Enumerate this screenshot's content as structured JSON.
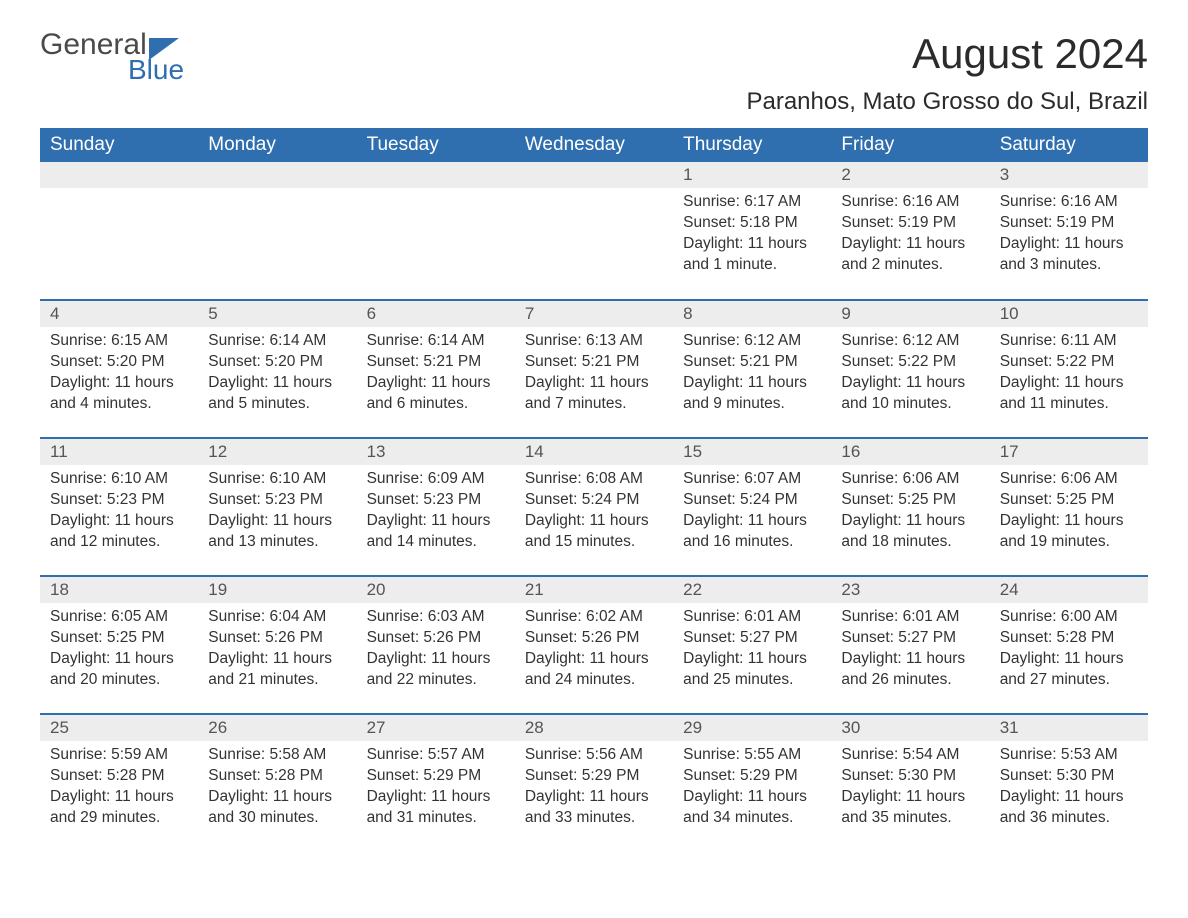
{
  "logo": {
    "word1": "General",
    "word2": "Blue",
    "accent_color": "#2f6fb0",
    "text_color": "#4a4a4a"
  },
  "title": "August 2024",
  "subtitle": "Paranhos, Mato Grosso do Sul, Brazil",
  "colors": {
    "header_bg": "#2f6fb0",
    "header_text": "#ffffff",
    "daynum_bg": "#ededed",
    "daynum_text": "#555555",
    "body_text": "#333333",
    "row_divider": "#2f6fb0",
    "page_bg": "#ffffff"
  },
  "typography": {
    "title_fontsize": 42,
    "subtitle_fontsize": 24,
    "header_fontsize": 19,
    "daynum_fontsize": 17,
    "body_fontsize": 15.5,
    "font_family": "Arial"
  },
  "column_headers": [
    "Sunday",
    "Monday",
    "Tuesday",
    "Wednesday",
    "Thursday",
    "Friday",
    "Saturday"
  ],
  "weeks": [
    [
      {
        "day": "",
        "sunrise": "",
        "sunset": "",
        "daylight": ""
      },
      {
        "day": "",
        "sunrise": "",
        "sunset": "",
        "daylight": ""
      },
      {
        "day": "",
        "sunrise": "",
        "sunset": "",
        "daylight": ""
      },
      {
        "day": "",
        "sunrise": "",
        "sunset": "",
        "daylight": ""
      },
      {
        "day": "1",
        "sunrise": "Sunrise: 6:17 AM",
        "sunset": "Sunset: 5:18 PM",
        "daylight": "Daylight: 11 hours and 1 minute."
      },
      {
        "day": "2",
        "sunrise": "Sunrise: 6:16 AM",
        "sunset": "Sunset: 5:19 PM",
        "daylight": "Daylight: 11 hours and 2 minutes."
      },
      {
        "day": "3",
        "sunrise": "Sunrise: 6:16 AM",
        "sunset": "Sunset: 5:19 PM",
        "daylight": "Daylight: 11 hours and 3 minutes."
      }
    ],
    [
      {
        "day": "4",
        "sunrise": "Sunrise: 6:15 AM",
        "sunset": "Sunset: 5:20 PM",
        "daylight": "Daylight: 11 hours and 4 minutes."
      },
      {
        "day": "5",
        "sunrise": "Sunrise: 6:14 AM",
        "sunset": "Sunset: 5:20 PM",
        "daylight": "Daylight: 11 hours and 5 minutes."
      },
      {
        "day": "6",
        "sunrise": "Sunrise: 6:14 AM",
        "sunset": "Sunset: 5:21 PM",
        "daylight": "Daylight: 11 hours and 6 minutes."
      },
      {
        "day": "7",
        "sunrise": "Sunrise: 6:13 AM",
        "sunset": "Sunset: 5:21 PM",
        "daylight": "Daylight: 11 hours and 7 minutes."
      },
      {
        "day": "8",
        "sunrise": "Sunrise: 6:12 AM",
        "sunset": "Sunset: 5:21 PM",
        "daylight": "Daylight: 11 hours and 9 minutes."
      },
      {
        "day": "9",
        "sunrise": "Sunrise: 6:12 AM",
        "sunset": "Sunset: 5:22 PM",
        "daylight": "Daylight: 11 hours and 10 minutes."
      },
      {
        "day": "10",
        "sunrise": "Sunrise: 6:11 AM",
        "sunset": "Sunset: 5:22 PM",
        "daylight": "Daylight: 11 hours and 11 minutes."
      }
    ],
    [
      {
        "day": "11",
        "sunrise": "Sunrise: 6:10 AM",
        "sunset": "Sunset: 5:23 PM",
        "daylight": "Daylight: 11 hours and 12 minutes."
      },
      {
        "day": "12",
        "sunrise": "Sunrise: 6:10 AM",
        "sunset": "Sunset: 5:23 PM",
        "daylight": "Daylight: 11 hours and 13 minutes."
      },
      {
        "day": "13",
        "sunrise": "Sunrise: 6:09 AM",
        "sunset": "Sunset: 5:23 PM",
        "daylight": "Daylight: 11 hours and 14 minutes."
      },
      {
        "day": "14",
        "sunrise": "Sunrise: 6:08 AM",
        "sunset": "Sunset: 5:24 PM",
        "daylight": "Daylight: 11 hours and 15 minutes."
      },
      {
        "day": "15",
        "sunrise": "Sunrise: 6:07 AM",
        "sunset": "Sunset: 5:24 PM",
        "daylight": "Daylight: 11 hours and 16 minutes."
      },
      {
        "day": "16",
        "sunrise": "Sunrise: 6:06 AM",
        "sunset": "Sunset: 5:25 PM",
        "daylight": "Daylight: 11 hours and 18 minutes."
      },
      {
        "day": "17",
        "sunrise": "Sunrise: 6:06 AM",
        "sunset": "Sunset: 5:25 PM",
        "daylight": "Daylight: 11 hours and 19 minutes."
      }
    ],
    [
      {
        "day": "18",
        "sunrise": "Sunrise: 6:05 AM",
        "sunset": "Sunset: 5:25 PM",
        "daylight": "Daylight: 11 hours and 20 minutes."
      },
      {
        "day": "19",
        "sunrise": "Sunrise: 6:04 AM",
        "sunset": "Sunset: 5:26 PM",
        "daylight": "Daylight: 11 hours and 21 minutes."
      },
      {
        "day": "20",
        "sunrise": "Sunrise: 6:03 AM",
        "sunset": "Sunset: 5:26 PM",
        "daylight": "Daylight: 11 hours and 22 minutes."
      },
      {
        "day": "21",
        "sunrise": "Sunrise: 6:02 AM",
        "sunset": "Sunset: 5:26 PM",
        "daylight": "Daylight: 11 hours and 24 minutes."
      },
      {
        "day": "22",
        "sunrise": "Sunrise: 6:01 AM",
        "sunset": "Sunset: 5:27 PM",
        "daylight": "Daylight: 11 hours and 25 minutes."
      },
      {
        "day": "23",
        "sunrise": "Sunrise: 6:01 AM",
        "sunset": "Sunset: 5:27 PM",
        "daylight": "Daylight: 11 hours and 26 minutes."
      },
      {
        "day": "24",
        "sunrise": "Sunrise: 6:00 AM",
        "sunset": "Sunset: 5:28 PM",
        "daylight": "Daylight: 11 hours and 27 minutes."
      }
    ],
    [
      {
        "day": "25",
        "sunrise": "Sunrise: 5:59 AM",
        "sunset": "Sunset: 5:28 PM",
        "daylight": "Daylight: 11 hours and 29 minutes."
      },
      {
        "day": "26",
        "sunrise": "Sunrise: 5:58 AM",
        "sunset": "Sunset: 5:28 PM",
        "daylight": "Daylight: 11 hours and 30 minutes."
      },
      {
        "day": "27",
        "sunrise": "Sunrise: 5:57 AM",
        "sunset": "Sunset: 5:29 PM",
        "daylight": "Daylight: 11 hours and 31 minutes."
      },
      {
        "day": "28",
        "sunrise": "Sunrise: 5:56 AM",
        "sunset": "Sunset: 5:29 PM",
        "daylight": "Daylight: 11 hours and 33 minutes."
      },
      {
        "day": "29",
        "sunrise": "Sunrise: 5:55 AM",
        "sunset": "Sunset: 5:29 PM",
        "daylight": "Daylight: 11 hours and 34 minutes."
      },
      {
        "day": "30",
        "sunrise": "Sunrise: 5:54 AM",
        "sunset": "Sunset: 5:30 PM",
        "daylight": "Daylight: 11 hours and 35 minutes."
      },
      {
        "day": "31",
        "sunrise": "Sunrise: 5:53 AM",
        "sunset": "Sunset: 5:30 PM",
        "daylight": "Daylight: 11 hours and 36 minutes."
      }
    ]
  ]
}
